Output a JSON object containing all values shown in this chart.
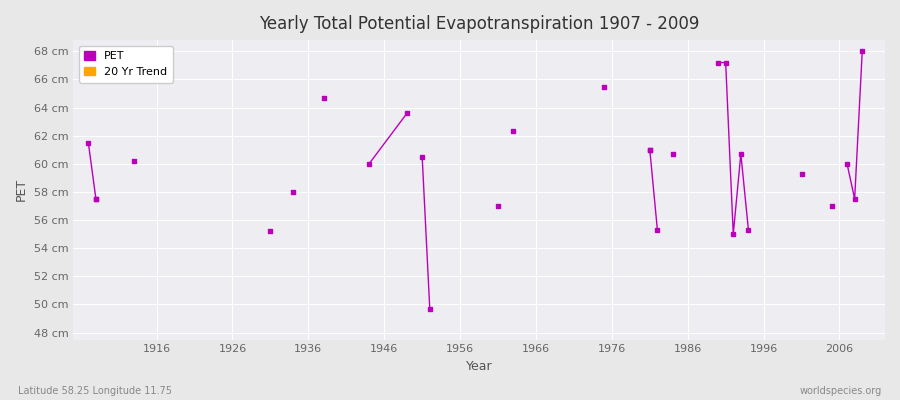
{
  "title": "Yearly Total Potential Evapotranspiration 1907 - 2009",
  "xlabel": "Year",
  "ylabel": "PET",
  "footnote_left": "Latitude 58.25 Longitude 11.75",
  "footnote_right": "worldspecies.org",
  "ylim": [
    47.5,
    68.8
  ],
  "xlim": [
    1905,
    2012
  ],
  "yticks": [
    48,
    50,
    52,
    54,
    56,
    58,
    60,
    62,
    64,
    66,
    68
  ],
  "ytick_labels": [
    "48 cm",
    "50 cm",
    "52 cm",
    "54 cm",
    "56 cm",
    "58 cm",
    "60 cm",
    "62 cm",
    "64 cm",
    "66 cm",
    "68 cm"
  ],
  "xticks": [
    1916,
    1926,
    1936,
    1946,
    1956,
    1966,
    1976,
    1986,
    1996,
    2006
  ],
  "pet_scatter_years": [
    1908,
    1913,
    1931,
    1934,
    1961,
    1963,
    1975,
    1981,
    1984,
    2001,
    2005
  ],
  "pet_scatter_values": [
    57.5,
    60.2,
    55.2,
    58.0,
    57.0,
    62.3,
    65.5,
    61.0,
    60.7,
    59.3,
    57.0
  ],
  "trend_segments": [
    [
      [
        1907,
        1908
      ],
      [
        61.5,
        57.5
      ]
    ],
    [
      [
        1938,
        1938
      ],
      [
        64.7,
        64.7
      ]
    ],
    [
      [
        1944,
        1949
      ],
      [
        60.0,
        63.6
      ]
    ],
    [
      [
        1951,
        1951
      ],
      [
        60.5,
        60.5
      ]
    ],
    [
      [
        1951,
        1952
      ],
      [
        60.5,
        49.7
      ]
    ],
    [
      [
        1981,
        1982
      ],
      [
        61.0,
        55.3
      ]
    ],
    [
      [
        1990,
        1991
      ],
      [
        67.2,
        67.2
      ]
    ],
    [
      [
        1991,
        1992
      ],
      [
        67.2,
        55.0
      ]
    ],
    [
      [
        1992,
        1993
      ],
      [
        55.0,
        60.7
      ]
    ],
    [
      [
        1993,
        1994
      ],
      [
        60.7,
        55.3
      ]
    ],
    [
      [
        2007,
        2009
      ],
      [
        60.0,
        68.0
      ]
    ],
    [
      [
        2009,
        2009
      ],
      [
        68.0,
        68.0
      ]
    ]
  ],
  "trend_connected_groups": [
    {
      "years": [
        1907,
        1908
      ],
      "values": [
        61.5,
        57.5
      ]
    },
    {
      "years": [
        1938
      ],
      "values": [
        64.7
      ]
    },
    {
      "years": [
        1944,
        1949
      ],
      "values": [
        60.0,
        63.6
      ]
    },
    {
      "years": [
        1951,
        1952
      ],
      "values": [
        60.5,
        49.7
      ]
    },
    {
      "years": [
        1981,
        1982
      ],
      "values": [
        61.0,
        55.3
      ]
    },
    {
      "years": [
        1990,
        1991,
        1992,
        1993,
        1994
      ],
      "values": [
        67.2,
        67.2,
        55.0,
        60.7,
        55.3
      ]
    },
    {
      "years": [
        2007,
        2008,
        2009
      ],
      "values": [
        60.0,
        57.5,
        68.0
      ]
    }
  ],
  "pet_color": "#BB00BB",
  "trend_color": "#BB00BB",
  "legend_pet_color": "#BB00BB",
  "legend_trend_color": "#FFA500",
  "bg_color": "#E8E8E8",
  "plot_bg": "#EEEEF2",
  "grid_color": "#FFFFFF",
  "legend_labels": [
    "PET",
    "20 Yr Trend"
  ]
}
